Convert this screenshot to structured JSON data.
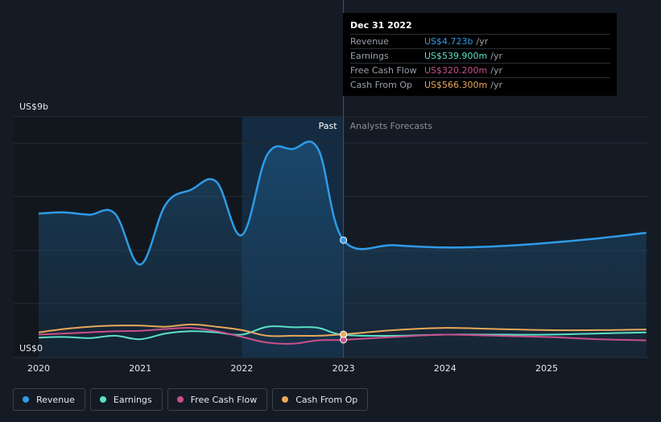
{
  "chart_data": {
    "type": "line",
    "y_axis_labels": {
      "top": "US$9b",
      "bottom": "US$0"
    },
    "ylim": [
      0,
      9
    ],
    "x_ticks": [
      "2020",
      "2021",
      "2022",
      "2023",
      "2024",
      "2025"
    ],
    "xlim": [
      2019.78,
      2025.98
    ],
    "past_label": "Past",
    "forecast_label": "Analysts Forecasts",
    "divider_x": 2023.0,
    "highlight_start_x": 2022.0,
    "grid": true,
    "series": [
      {
        "name": "Revenue",
        "color": "#2f9be8",
        "filled": true,
        "x": [
          2020.0,
          2020.25,
          2020.5,
          2020.75,
          2021.0,
          2021.25,
          2021.5,
          2021.75,
          2022.0,
          2022.25,
          2022.5,
          2022.75,
          2023.0,
          2023.5,
          2024.0,
          2024.5,
          2025.0,
          2025.5,
          2025.98
        ],
        "y": [
          5.9,
          5.95,
          5.85,
          5.9,
          3.65,
          6.3,
          6.95,
          7.3,
          4.95,
          8.5,
          8.75,
          8.75,
          4.723,
          4.5,
          4.4,
          4.45,
          4.6,
          4.8,
          5.05
        ]
      },
      {
        "name": "Earnings",
        "color": "#5ce0c8",
        "filled": false,
        "x": [
          2020.0,
          2020.25,
          2020.5,
          2020.75,
          2021.0,
          2021.25,
          2021.5,
          2021.75,
          2022.0,
          2022.25,
          2022.5,
          2022.75,
          2023.0,
          2023.5,
          2024.0,
          2024.5,
          2025.0,
          2025.5,
          2025.98
        ],
        "y": [
          0.42,
          0.45,
          0.4,
          0.5,
          0.35,
          0.6,
          0.7,
          0.65,
          0.55,
          0.9,
          0.88,
          0.85,
          0.5399,
          0.5,
          0.55,
          0.55,
          0.55,
          0.6,
          0.65
        ]
      },
      {
        "name": "Free Cash Flow",
        "color": "#c9508a",
        "filled": false,
        "x": [
          2020.0,
          2020.25,
          2020.5,
          2020.75,
          2021.0,
          2021.25,
          2021.5,
          2021.75,
          2022.0,
          2022.25,
          2022.5,
          2022.75,
          2023.0,
          2023.5,
          2024.0,
          2024.5,
          2025.0,
          2025.5,
          2025.98
        ],
        "y": [
          0.55,
          0.6,
          0.65,
          0.7,
          0.72,
          0.8,
          0.85,
          0.7,
          0.45,
          0.2,
          0.15,
          0.3,
          0.3202,
          0.45,
          0.55,
          0.5,
          0.45,
          0.35,
          0.3
        ]
      },
      {
        "name": "Cash From Op",
        "color": "#e8a85a",
        "filled": false,
        "x": [
          2020.0,
          2020.25,
          2020.5,
          2020.75,
          2021.0,
          2021.25,
          2021.5,
          2021.75,
          2022.0,
          2022.25,
          2022.5,
          2022.75,
          2023.0,
          2023.5,
          2024.0,
          2024.5,
          2025.0,
          2025.5,
          2025.98
        ],
        "y": [
          0.65,
          0.8,
          0.9,
          0.95,
          0.95,
          0.9,
          1.0,
          0.9,
          0.75,
          0.5,
          0.5,
          0.5,
          0.5663,
          0.75,
          0.85,
          0.8,
          0.75,
          0.75,
          0.78
        ]
      }
    ]
  },
  "tooltip": {
    "date": "Dec 31 2022",
    "rows": [
      {
        "name": "Revenue",
        "value": "US$4.723b",
        "unit": "/yr",
        "color": "#2f9be8"
      },
      {
        "name": "Earnings",
        "value": "US$539.900m",
        "unit": "/yr",
        "color": "#5ce0c8"
      },
      {
        "name": "Free Cash Flow",
        "value": "US$320.200m",
        "unit": "/yr",
        "color": "#c9508a"
      },
      {
        "name": "Cash From Op",
        "value": "US$566.300m",
        "unit": "/yr",
        "color": "#e8a85a"
      }
    ]
  },
  "legend": [
    {
      "label": "Revenue",
      "color": "#2f9be8"
    },
    {
      "label": "Earnings",
      "color": "#5ce0c8"
    },
    {
      "label": "Free Cash Flow",
      "color": "#c9508a"
    },
    {
      "label": "Cash From Op",
      "color": "#e8a85a"
    }
  ]
}
